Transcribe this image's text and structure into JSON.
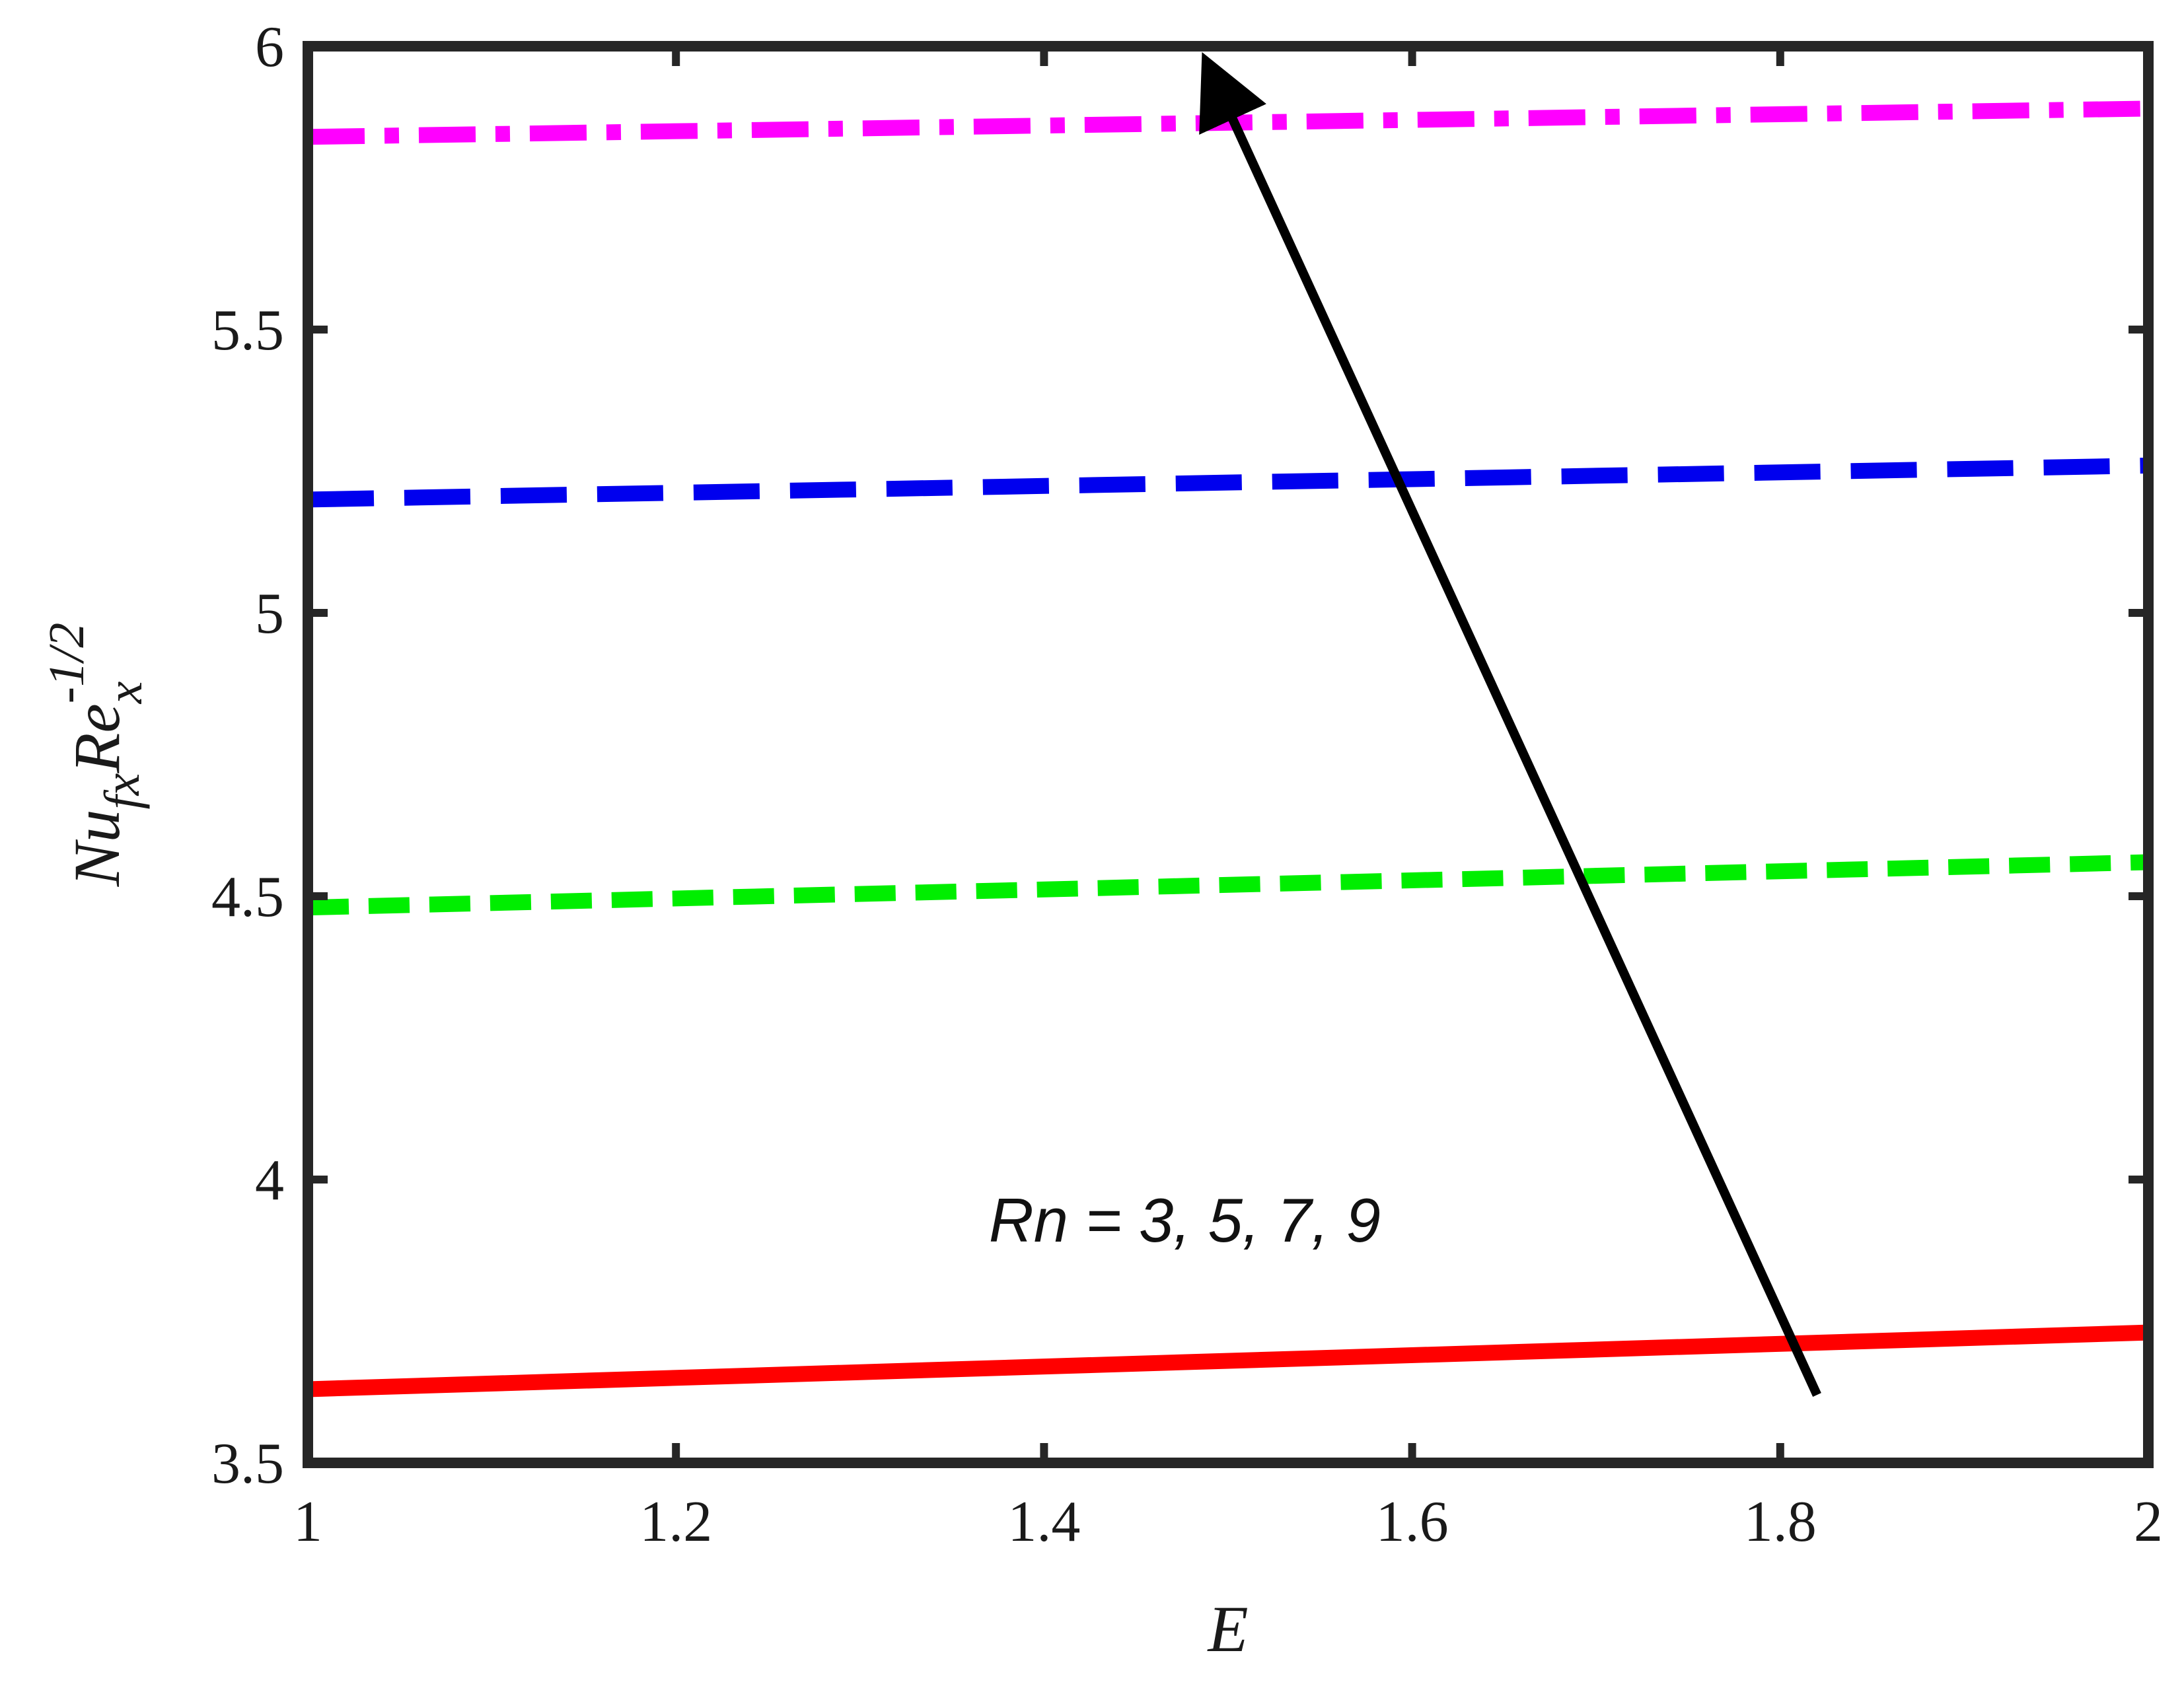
{
  "chart_data": {
    "type": "line",
    "title": "",
    "xlabel": "E",
    "ylabel": {
      "base": "Nu",
      "base_sub": "fx",
      "second": "Re",
      "second_sub": "x",
      "second_sup": "-1/2"
    },
    "xlim": [
      1,
      2
    ],
    "ylim": [
      3.5,
      6
    ],
    "x_ticks": [
      1,
      1.2,
      1.4,
      1.6,
      1.8,
      2
    ],
    "x_tick_labels": [
      "1",
      "1.2",
      "1.4",
      "1.6",
      "1.8",
      "2"
    ],
    "y_ticks": [
      3.5,
      4,
      4.5,
      5,
      5.5,
      6
    ],
    "y_tick_labels": [
      "3.5",
      "4",
      "4.5",
      "5",
      "5.5",
      "6"
    ],
    "grid": false,
    "legend": "none",
    "series": [
      {
        "x": [
          1,
          2
        ],
        "y": [
          3.63,
          3.73
        ],
        "color": "#ff0000",
        "style": "solid"
      },
      {
        "x": [
          1,
          2
        ],
        "y": [
          4.48,
          4.56
        ],
        "color": "#00ee00",
        "style": "dash"
      },
      {
        "x": [
          1,
          2
        ],
        "y": [
          5.2,
          5.26
        ],
        "color": "#0000ee",
        "style": "longdash"
      },
      {
        "x": [
          1,
          2
        ],
        "y": [
          5.84,
          5.89
        ],
        "color": "#ff00ff",
        "style": "dashdot"
      }
    ],
    "annotations": [
      {
        "text": "Rn = 3, 5, 7, 9",
        "x": 1.37,
        "y": 3.93,
        "arrow": {
          "from": [
            1.82,
            3.62
          ],
          "to": [
            1.49,
            5.96
          ]
        }
      }
    ]
  }
}
